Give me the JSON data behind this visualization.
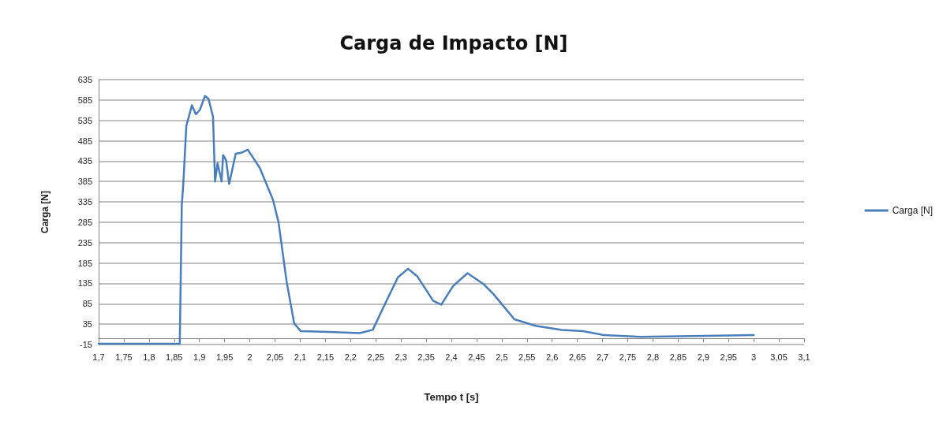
{
  "chart_data": {
    "type": "line",
    "title": "Carga de Impacto [N]",
    "xlabel": "Tempo t [s]",
    "ylabel": "Carga [N]",
    "series": [
      {
        "name": "Carga [N]",
        "color": "#4a7ebb",
        "x": [
          1.7,
          1.861,
          1.865,
          1.868,
          1.874,
          1.885,
          1.893,
          1.901,
          1.911,
          1.918,
          1.927,
          1.931,
          1.936,
          1.944,
          1.947,
          1.953,
          1.959,
          1.972,
          1.984,
          1.996,
          2.02,
          2.046,
          2.057,
          2.073,
          2.088,
          2.101,
          2.156,
          2.218,
          2.244,
          2.27,
          2.294,
          2.314,
          2.332,
          2.364,
          2.38,
          2.403,
          2.432,
          2.463,
          2.484,
          2.525,
          2.567,
          2.619,
          2.661,
          2.703,
          2.776,
          2.88,
          3.0
        ],
        "values": [
          -13,
          -13,
          327,
          379,
          521,
          572,
          550,
          561,
          595,
          588,
          544,
          385,
          430,
          385,
          450,
          437,
          379,
          453,
          456,
          463,
          418,
          340,
          285,
          140,
          37,
          18,
          16,
          13,
          21,
          89,
          150,
          171,
          153,
          92,
          83,
          128,
          160,
          134,
          108,
          47,
          31,
          21,
          18,
          8,
          4,
          6,
          8
        ]
      }
    ],
    "ylim": [
      -15,
      635
    ],
    "yticks": [
      -15,
      35,
      85,
      135,
      185,
      235,
      285,
      335,
      385,
      435,
      485,
      535,
      585,
      635
    ],
    "xlim": [
      1.7,
      3.1
    ],
    "xticks": [
      {
        "value": 1.7,
        "label": "1,7"
      },
      {
        "value": 1.75,
        "label": "1,75"
      },
      {
        "value": 1.8,
        "label": "1,8"
      },
      {
        "value": 1.85,
        "label": "1,85"
      },
      {
        "value": 1.9,
        "label": "1,9"
      },
      {
        "value": 1.95,
        "label": "1,95"
      },
      2,
      {
        "value": 2.05,
        "label": "2,05"
      },
      {
        "value": 2.1,
        "label": "2,1"
      },
      {
        "value": 2.15,
        "label": "2,15"
      },
      {
        "value": 2.2,
        "label": "2,2"
      },
      {
        "value": 2.25,
        "label": "2,25"
      },
      {
        "value": 2.3,
        "label": "2,3"
      },
      {
        "value": 2.35,
        "label": "2,35"
      },
      {
        "value": 2.4,
        "label": "2,4"
      },
      {
        "value": 2.45,
        "label": "2,45"
      },
      {
        "value": 2.5,
        "label": "2,5"
      },
      {
        "value": 2.55,
        "label": "2,55"
      },
      {
        "value": 2.6,
        "label": "2,6"
      },
      {
        "value": 2.65,
        "label": "2,65"
      },
      {
        "value": 2.7,
        "label": "2,7"
      },
      {
        "value": 2.75,
        "label": "2,75"
      },
      {
        "value": 2.8,
        "label": "2,8"
      },
      {
        "value": 2.85,
        "label": "2,85"
      },
      {
        "value": 2.9,
        "label": "2,9"
      },
      {
        "value": 2.95,
        "label": "2,95"
      },
      3,
      {
        "value": 3.05,
        "label": "3,05"
      },
      {
        "value": 3.1,
        "label": "3,1"
      }
    ],
    "grid": "y",
    "legend": "right",
    "marker": "none",
    "line_style": "solid"
  }
}
